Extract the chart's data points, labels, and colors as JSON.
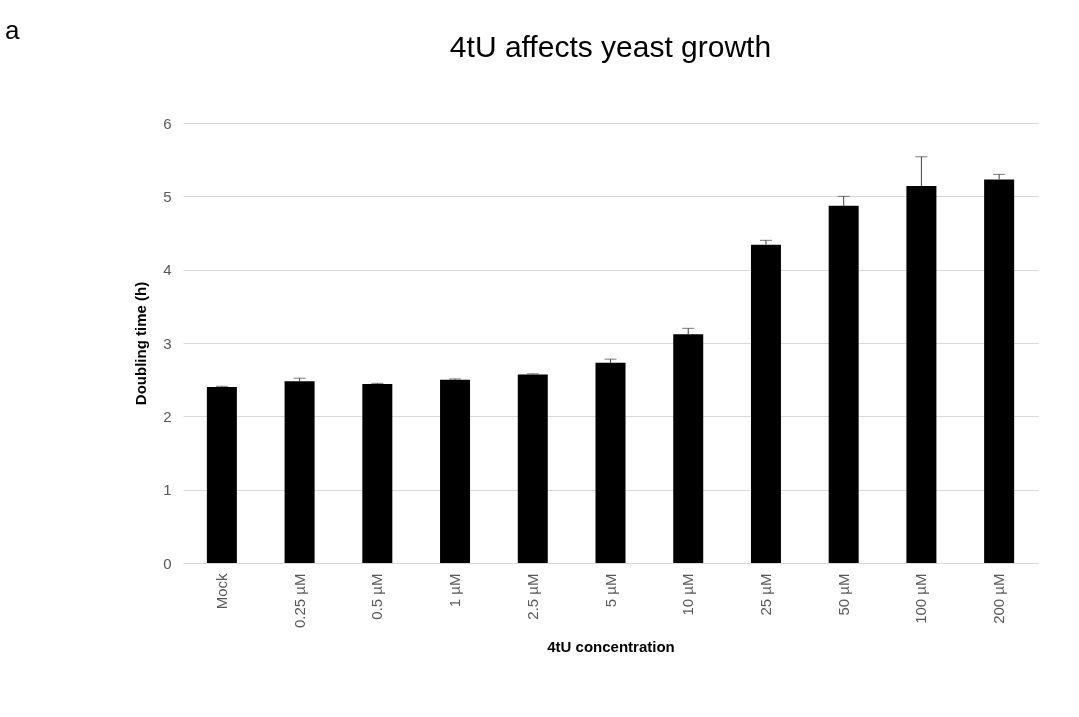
{
  "chart_data": {
    "type": "bar",
    "title": "4tU affects yeast growth",
    "xlabel": "4tU concentration",
    "ylabel": "Doubling time (h)",
    "categories": [
      "Mock",
      "0.25 µM",
      "0.5 µM",
      "1 µM",
      "2.5 µM",
      "5 µM",
      "10 µM",
      "25 µM",
      "50 µM",
      "100 µM",
      "200 µM"
    ],
    "values": [
      2.4,
      2.48,
      2.44,
      2.5,
      2.57,
      2.73,
      3.12,
      4.34,
      4.87,
      5.14,
      5.23
    ],
    "errors": [
      [
        2.4,
        2.41
      ],
      [
        2.48,
        2.52
      ],
      [
        2.44,
        2.45
      ],
      [
        2.5,
        2.51
      ],
      [
        2.57,
        2.58
      ],
      [
        2.73,
        2.78
      ],
      [
        3.12,
        3.2
      ],
      [
        4.34,
        4.4
      ],
      [
        4.87,
        5.0
      ],
      [
        5.14,
        5.54
      ],
      [
        5.23,
        5.3
      ]
    ],
    "color": "#000000",
    "ylim": [
      0,
      6
    ],
    "yticks": [
      0,
      1,
      2,
      3,
      4,
      5,
      6
    ],
    "grid": "y",
    "annotations": [
      "a"
    ]
  }
}
